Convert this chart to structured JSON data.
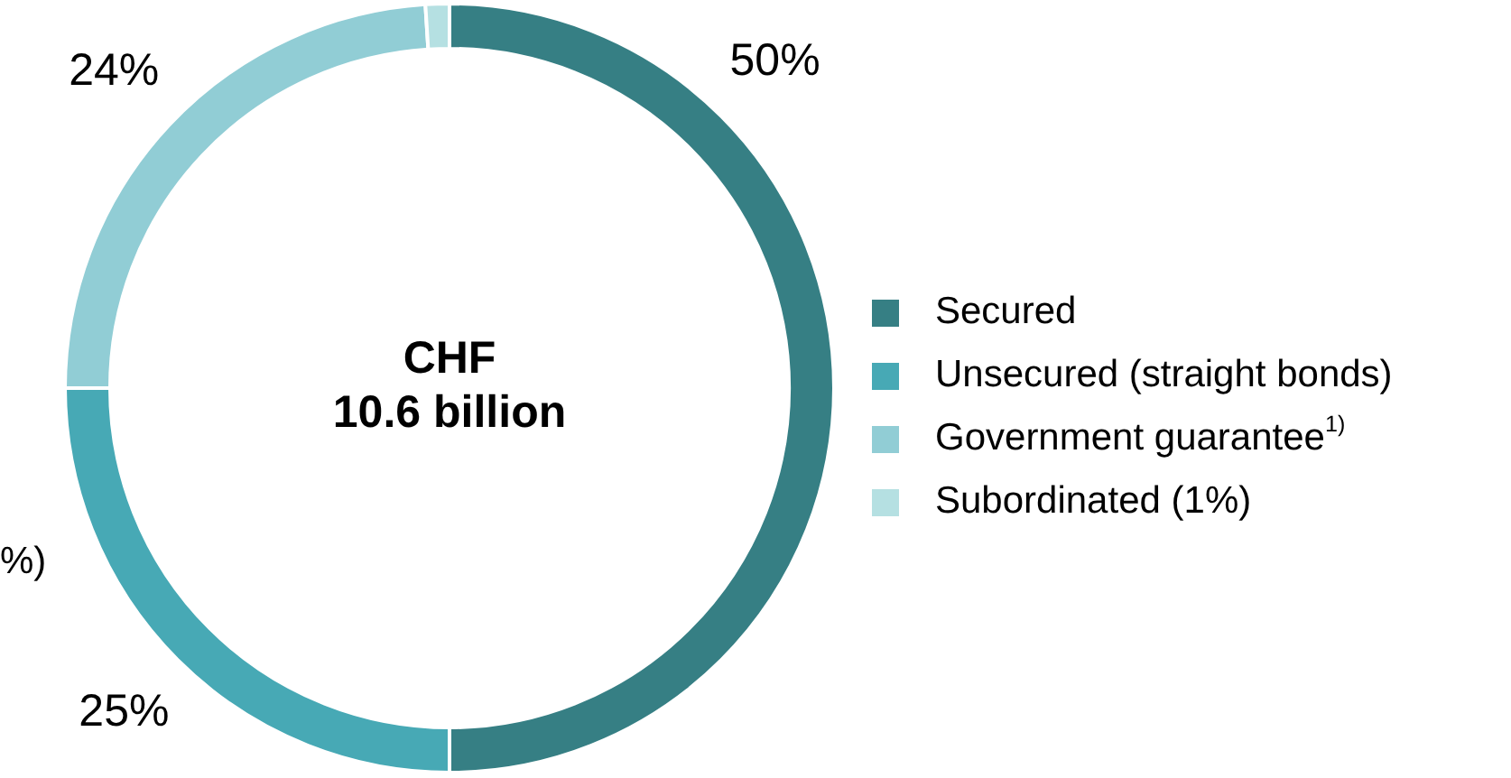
{
  "chart_data": {
    "type": "donut",
    "title": "CHF 10.6 billion",
    "categories": [
      "Secured",
      "Unsecured (straight bonds)",
      "Government guarantee$^{1)}$",
      "Subordinated (1%)"
    ],
    "values": [
      50,
      25,
      24,
      1
    ],
    "colors": [
      "#367f84",
      "#47a9b5",
      "#91cdd5",
      "#b5e0e2"
    ],
    "value_labels": [
      "50%",
      "25%",
      "24%",
      null
    ],
    "legend": "right",
    "annotations": [
      "%)"
    ]
  }
}
